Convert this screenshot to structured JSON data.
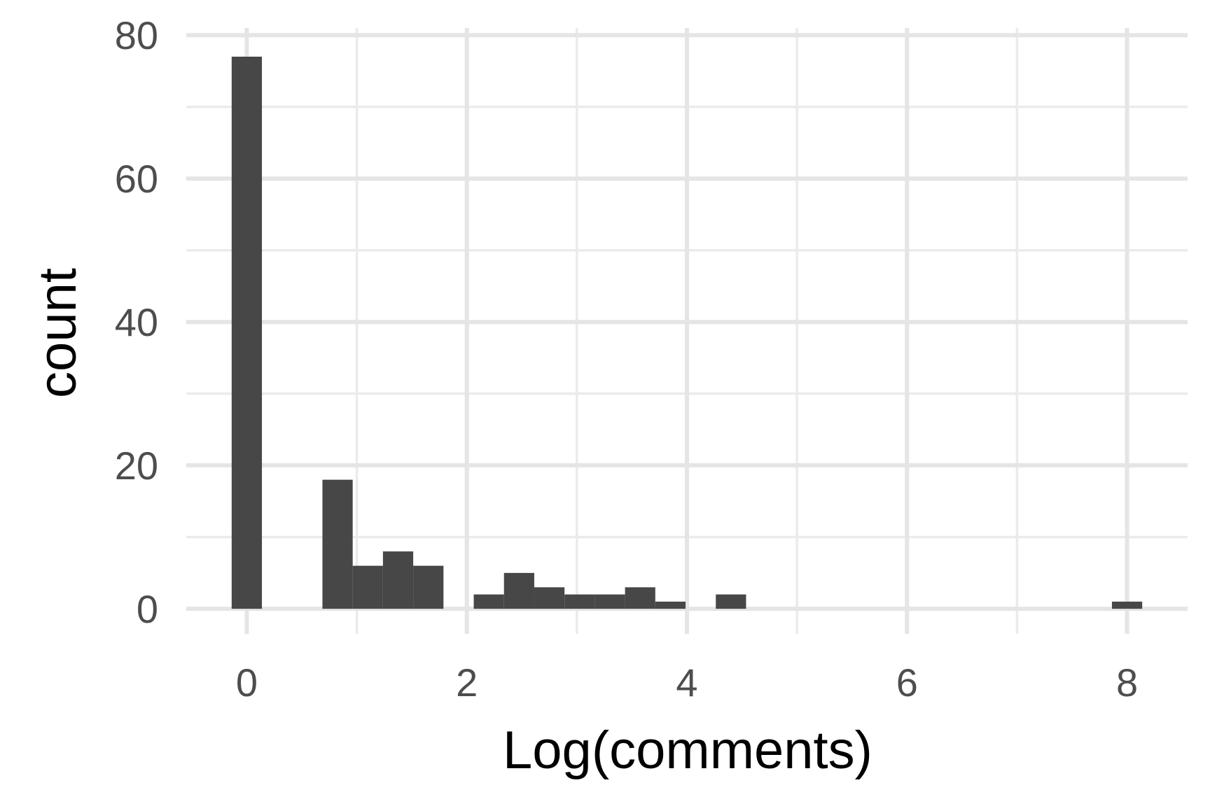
{
  "chart_data": {
    "type": "bar",
    "title": "",
    "xlabel": "Log(comments)",
    "ylabel": "count",
    "xlim": [
      -0.55,
      8.55
    ],
    "ylim": [
      -3.5,
      81
    ],
    "x_ticks": [
      0,
      2,
      4,
      6,
      8
    ],
    "x_minor": [
      1,
      3,
      5,
      7
    ],
    "y_ticks": [
      0,
      20,
      40,
      60,
      80
    ],
    "y_minor": [
      10,
      30,
      50,
      70
    ],
    "grid": true,
    "legend": "none",
    "bar_color": "#474747",
    "bin_width": 0.275,
    "bins": [
      {
        "x": 0.0,
        "count": 77
      },
      {
        "x": 0.825,
        "count": 18
      },
      {
        "x": 1.1,
        "count": 6
      },
      {
        "x": 1.375,
        "count": 8
      },
      {
        "x": 1.65,
        "count": 6
      },
      {
        "x": 2.2,
        "count": 2
      },
      {
        "x": 2.475,
        "count": 5
      },
      {
        "x": 2.75,
        "count": 3
      },
      {
        "x": 3.025,
        "count": 2
      },
      {
        "x": 3.3,
        "count": 2
      },
      {
        "x": 3.575,
        "count": 3
      },
      {
        "x": 3.85,
        "count": 1
      },
      {
        "x": 4.4,
        "count": 2
      },
      {
        "x": 8.0,
        "count": 1
      }
    ]
  }
}
